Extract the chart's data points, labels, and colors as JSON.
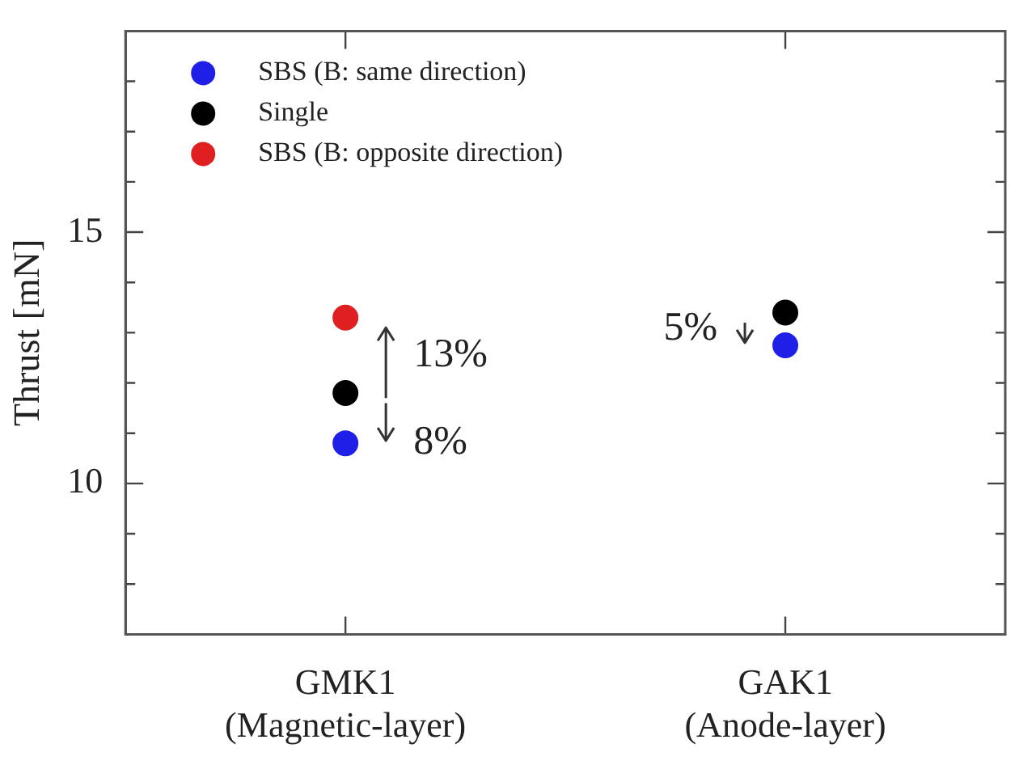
{
  "chart_data": {
    "type": "scatter",
    "categories": [
      "GMK1\n(Magnetic-layer)",
      "GAK1\n(Anode-layer)"
    ],
    "ylabel": "Thrust [mN]",
    "series": [
      {
        "name": "SBS (B: same direction)",
        "color": "#1f1fe8",
        "values": [
          10.8,
          12.75
        ]
      },
      {
        "name": "Single",
        "color": "#000000",
        "values": [
          11.8,
          13.4
        ]
      },
      {
        "name": "SBS (B: opposite direction)",
        "color": "#e02020",
        "values": [
          13.3,
          null
        ]
      }
    ],
    "ylim": [
      7,
      19
    ],
    "yticks": [
      {
        "value": 8,
        "label": null
      },
      {
        "value": 9,
        "label": null
      },
      10,
      {
        "value": 11,
        "label": null
      },
      {
        "value": 12,
        "label": null
      },
      {
        "value": 13,
        "label": null
      },
      {
        "value": 14,
        "label": null
      },
      15,
      {
        "value": 16,
        "label": null
      },
      {
        "value": 17,
        "label": null
      },
      {
        "value": 18,
        "label": null
      }
    ],
    "annotations": [
      {
        "text": "13%",
        "x": "GMK1\n(Magnetic-layer)",
        "y": 13.3
      },
      {
        "text": "8%",
        "x": "GMK1\n(Magnetic-layer)",
        "y": 10.8
      },
      {
        "text": "5%",
        "x": "GAK1\n(Anode-layer)",
        "y": 12.75
      }
    ],
    "legend": "top left",
    "marker": "circle",
    "grid": false
  }
}
